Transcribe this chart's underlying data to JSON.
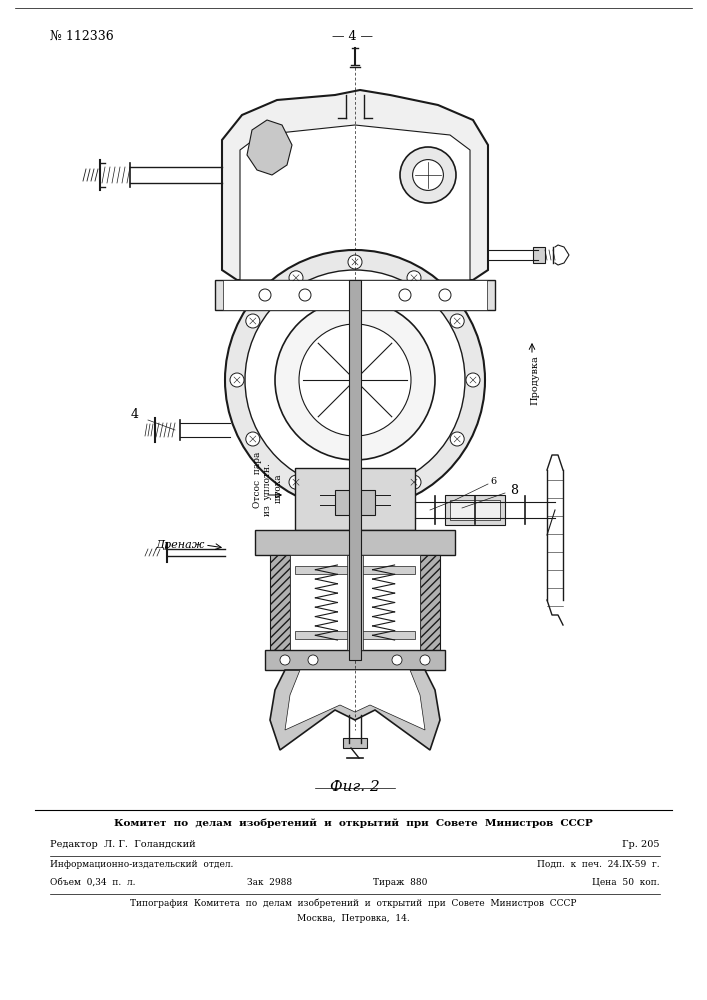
{
  "page_number": "№ 112336",
  "center_label": "— 4 —",
  "fig_label": "Фиг. 2",
  "footer_line1": "Комитет  по  делам  изобретений  и  открытий  при  Совете  Министров  СССР",
  "footer_line2_left": "Редактор  Л. Г.  Голандский",
  "footer_line2_right": "Гр. 205",
  "footer_line3_left": "Информационно-издательский  отдел.",
  "footer_line3_right": "Подп.  к  печ.  24.IX-59  г.",
  "footer_line4_left": "Объем  0,34  п.  л.",
  "footer_line4_mid1": "Зак  2988",
  "footer_line4_mid2": "Тираж  880",
  "footer_line4_right": "Цена  50  коп.",
  "footer_line5": "Типография  Комитета  по  делам  изобретений  и  открытий  при  Совете  Министров  СССР",
  "footer_line6": "Москва,  Петровка,  14.",
  "label_produvka": "Продувка",
  "label_otsos": "Отсос  пара",
  "label_uplot": "из  уплотн.",
  "label_shtoka": "штока",
  "label_drenazh": "Дренаж",
  "bg_color": "#ffffff",
  "dc": "#1a1a1a"
}
